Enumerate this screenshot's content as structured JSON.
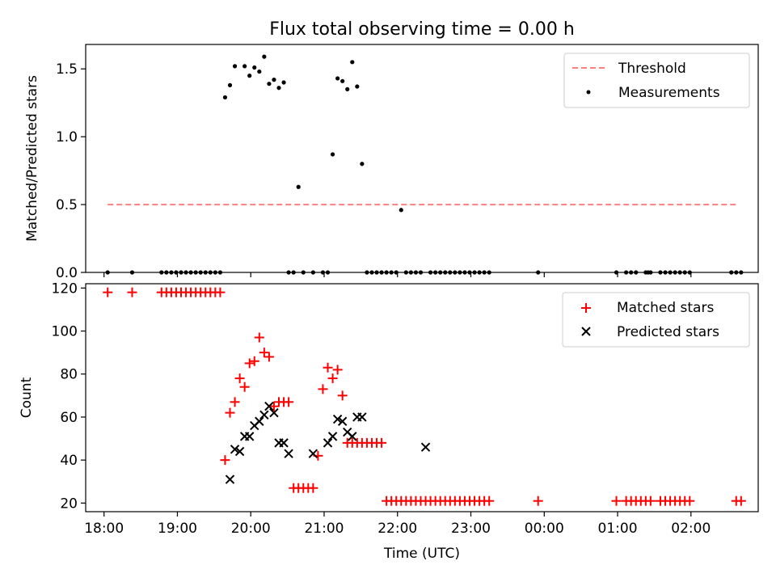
{
  "figure": {
    "title": "Flux total observing time = 0.00 h"
  },
  "colors": {
    "threshold": "#ff7f7f",
    "measurements": "#000000",
    "matched": "#ff0000",
    "predicted": "#000000",
    "axes": "#000000"
  },
  "chart_data": [
    {
      "type": "scatter",
      "ylabel": "Matched/Predicted stars",
      "xlabel": "",
      "xlim": [
        "17:45",
        "02:55"
      ],
      "ylim": [
        0.0,
        1.68
      ],
      "yticks": [
        0.0,
        0.5,
        1.0,
        1.5
      ],
      "ytick_labels": [
        "0.0",
        "0.5",
        "1.0",
        "1.5"
      ],
      "legend": {
        "position": "top-right",
        "entries": [
          "Threshold",
          "Measurements"
        ]
      },
      "series": [
        {
          "name": "Threshold",
          "kind": "dashed-line",
          "x": [
            "18:03",
            "02:38"
          ],
          "y": [
            0.5,
            0.5
          ]
        },
        {
          "name": "Measurements",
          "kind": "points",
          "x": [
            "18:03",
            "18:23",
            "18:47",
            "18:51",
            "18:55",
            "18:59",
            "19:03",
            "19:07",
            "19:11",
            "19:15",
            "19:19",
            "19:23",
            "19:27",
            "19:31",
            "19:35",
            "19:39",
            "19:43",
            "19:47",
            "19:55",
            "19:59",
            "20:03",
            "20:07",
            "20:11",
            "20:15",
            "20:19",
            "20:23",
            "20:27",
            "20:31",
            "20:35",
            "20:39",
            "20:43",
            "20:51",
            "20:59",
            "21:03",
            "21:07",
            "21:11",
            "21:15",
            "21:19",
            "21:23",
            "21:27",
            "21:31",
            "21:35",
            "21:39",
            "21:43",
            "21:47",
            "21:51",
            "21:55",
            "21:59",
            "22:03",
            "22:07",
            "22:11",
            "22:15",
            "22:19",
            "22:27",
            "22:31",
            "22:35",
            "22:39",
            "22:43",
            "22:47",
            "22:51",
            "22:55",
            "22:59",
            "23:03",
            "23:07",
            "23:11",
            "23:15",
            "23:55",
            "00:59",
            "01:07",
            "01:11",
            "01:15",
            "01:23",
            "01:25",
            "01:27",
            "01:35",
            "01:39",
            "01:43",
            "01:47",
            "01:51",
            "01:55",
            "01:59",
            "02:33",
            "02:37",
            "02:41"
          ],
          "y": [
            0,
            0,
            0,
            0,
            0,
            0,
            0,
            0,
            0,
            0,
            0,
            0,
            0,
            0,
            0,
            1.29,
            1.38,
            1.52,
            1.52,
            1.45,
            1.51,
            1.48,
            1.59,
            1.39,
            1.42,
            1.36,
            1.4,
            0,
            0,
            0.63,
            0,
            0,
            0,
            0,
            0.87,
            1.43,
            1.41,
            1.35,
            1.55,
            1.37,
            0.8,
            0,
            0,
            0,
            0,
            0,
            0,
            0,
            0.46,
            0,
            0,
            0,
            0,
            0,
            0,
            0,
            0,
            0,
            0,
            0,
            0,
            0,
            0,
            0,
            0,
            0,
            0,
            0,
            0,
            0,
            0,
            0,
            0,
            0,
            0,
            0,
            0,
            0,
            0,
            0,
            0,
            0,
            0,
            0
          ]
        }
      ]
    },
    {
      "type": "scatter",
      "ylabel": "Count",
      "xlabel": "Time (UTC)",
      "xlim": [
        "17:45",
        "02:55"
      ],
      "ylim": [
        16,
        122
      ],
      "yticks": [
        20,
        40,
        60,
        80,
        100,
        120
      ],
      "ytick_labels": [
        "20",
        "40",
        "60",
        "80",
        "100",
        "120"
      ],
      "xticks": [
        "18:00",
        "19:00",
        "20:00",
        "21:00",
        "22:00",
        "23:00",
        "00:00",
        "01:00",
        "02:00"
      ],
      "legend": {
        "position": "top-right",
        "entries": [
          "Matched stars",
          "Predicted stars"
        ]
      },
      "series": [
        {
          "name": "Matched stars",
          "marker": "plus",
          "x": [
            "18:03",
            "18:23",
            "18:47",
            "18:51",
            "18:55",
            "18:59",
            "19:03",
            "19:07",
            "19:11",
            "19:15",
            "19:19",
            "19:23",
            "19:27",
            "19:31",
            "19:35",
            "19:39",
            "19:43",
            "19:47",
            "19:51",
            "19:55",
            "19:59",
            "20:03",
            "20:07",
            "20:11",
            "20:15",
            "20:19",
            "20:23",
            "20:27",
            "20:31",
            "20:35",
            "20:39",
            "20:43",
            "20:47",
            "20:51",
            "20:55",
            "20:59",
            "21:03",
            "21:07",
            "21:11",
            "21:15",
            "21:19",
            "21:23",
            "21:27",
            "21:31",
            "21:35",
            "21:39",
            "21:43",
            "21:47",
            "21:51",
            "21:55",
            "21:59",
            "22:03",
            "22:07",
            "22:11",
            "22:15",
            "22:19",
            "22:23",
            "22:27",
            "22:31",
            "22:35",
            "22:39",
            "22:43",
            "22:47",
            "22:51",
            "22:55",
            "22:59",
            "23:03",
            "23:07",
            "23:11",
            "23:15",
            "23:55",
            "00:59",
            "01:07",
            "01:11",
            "01:15",
            "01:19",
            "01:23",
            "01:27",
            "01:35",
            "01:39",
            "01:43",
            "01:47",
            "01:51",
            "01:55",
            "01:59",
            "02:37",
            "02:41"
          ],
          "y": [
            118,
            118,
            118,
            118,
            118,
            118,
            118,
            118,
            118,
            118,
            118,
            118,
            118,
            118,
            118,
            40,
            62,
            67,
            78,
            74,
            85,
            86,
            97,
            90,
            88,
            65,
            67,
            67,
            67,
            27,
            27,
            27,
            27,
            27,
            42,
            73,
            83,
            78,
            82,
            70,
            48,
            48,
            48,
            48,
            48,
            48,
            48,
            48,
            21,
            21,
            21,
            21,
            21,
            21,
            21,
            21,
            21,
            21,
            21,
            21,
            21,
            21,
            21,
            21,
            21,
            21,
            21,
            21,
            21,
            21,
            21,
            21,
            21,
            21,
            21,
            21,
            21,
            21,
            21,
            21,
            21,
            21,
            21,
            21,
            21,
            21,
            21
          ]
        },
        {
          "name": "Predicted stars",
          "marker": "x",
          "x": [
            "19:43",
            "19:47",
            "19:51",
            "19:55",
            "19:59",
            "20:03",
            "20:07",
            "20:11",
            "20:15",
            "20:19",
            "20:23",
            "20:27",
            "20:31",
            "20:51",
            "21:03",
            "21:07",
            "21:11",
            "21:15",
            "21:19",
            "21:23",
            "21:27",
            "21:31",
            "22:23"
          ],
          "y": [
            31,
            45,
            44,
            51,
            51,
            56,
            58,
            61,
            65,
            62,
            48,
            48,
            43,
            43,
            48,
            51,
            59,
            58,
            53,
            51,
            60,
            60,
            46
          ]
        }
      ]
    }
  ]
}
